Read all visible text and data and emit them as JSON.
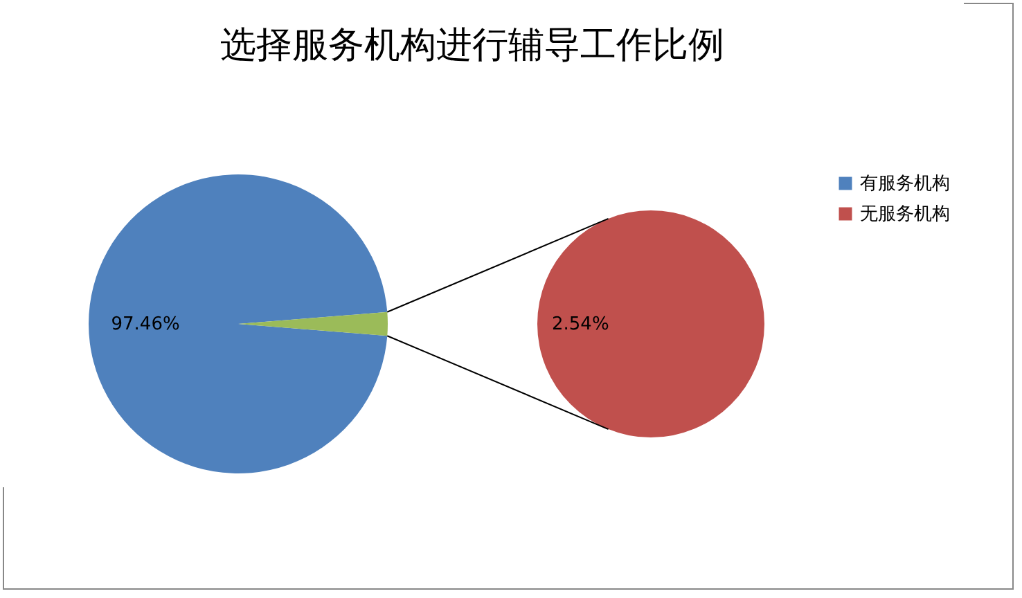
{
  "chart_data": [
    {
      "type": "pie",
      "title": "选择服务机构进行辅导工作比例",
      "categories": [
        "有服务机构",
        null
      ],
      "values": [
        97.46,
        2.54
      ],
      "colors": [
        "#4f81bd",
        "#9bbb59"
      ],
      "value_labels": [
        "97.46%",
        null
      ],
      "legend": "right"
    },
    {
      "type": "pie",
      "categories": [
        "无服务机构"
      ],
      "values": [
        2.54
      ],
      "colors": [
        "#c0504d"
      ],
      "value_labels": [
        "2.54%"
      ],
      "legend": "right"
    }
  ]
}
